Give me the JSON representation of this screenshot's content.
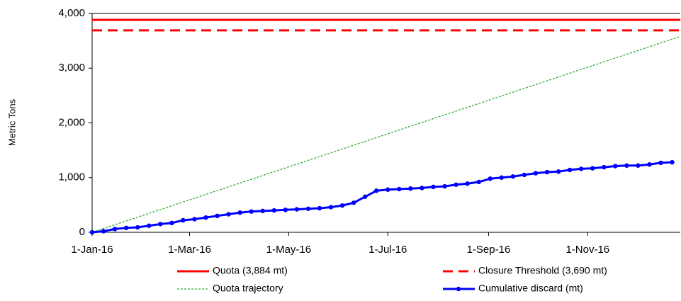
{
  "chart_data": {
    "type": "line",
    "ylabel": "Metric Tons",
    "xlim": [
      "2016-01-01",
      "2016-12-28"
    ],
    "xticks": [
      {
        "value": "2016-01-01",
        "label": "1-Jan-16"
      },
      {
        "value": "2016-03-01",
        "label": "1-Mar-16"
      },
      {
        "value": "2016-05-01",
        "label": "1-May-16"
      },
      {
        "value": "2016-07-01",
        "label": "1-Jul-16"
      },
      {
        "value": "2016-09-01",
        "label": "1-Sep-16"
      },
      {
        "value": "2016-11-01",
        "label": "1-Nov-16"
      }
    ],
    "ylim": [
      0,
      4000
    ],
    "yticks": [
      0,
      {
        "value": 1000,
        "label": "1,000"
      },
      {
        "value": 2000,
        "label": "2,000"
      },
      {
        "value": 3000,
        "label": "3,000"
      },
      {
        "value": 4000,
        "label": "4,000"
      }
    ],
    "legend": "bottom",
    "series": [
      {
        "name": "Quota (3,884 mt)",
        "color": "#ff0000",
        "style": "solid",
        "marker": false,
        "x": [
          "2016-01-01",
          "2016-12-28"
        ],
        "values": [
          3884,
          3884
        ]
      },
      {
        "name": "Closure Threshold (3,690 mt)",
        "color": "#ff0000",
        "style": "dashed",
        "marker": false,
        "x": [
          "2016-01-01",
          "2016-12-28"
        ],
        "values": [
          3690,
          3690
        ]
      },
      {
        "name": "Quota trajectory",
        "color": "#33aa33",
        "style": "dotted",
        "marker": false,
        "x": [
          "2016-01-01",
          "2016-12-28"
        ],
        "values": [
          0,
          3580
        ]
      },
      {
        "name": "Cumulative discard (mt)",
        "color": "#0000ff",
        "style": "solid",
        "marker": true,
        "x": [
          "2016-01-01",
          "2016-01-08",
          "2016-01-15",
          "2016-01-22",
          "2016-01-29",
          "2016-02-05",
          "2016-02-12",
          "2016-02-19",
          "2016-02-26",
          "2016-03-04",
          "2016-03-11",
          "2016-03-18",
          "2016-03-25",
          "2016-04-01",
          "2016-04-08",
          "2016-04-15",
          "2016-04-22",
          "2016-04-29",
          "2016-05-06",
          "2016-05-13",
          "2016-05-20",
          "2016-05-27",
          "2016-06-03",
          "2016-06-10",
          "2016-06-17",
          "2016-06-24",
          "2016-07-01",
          "2016-07-08",
          "2016-07-15",
          "2016-07-22",
          "2016-07-29",
          "2016-08-05",
          "2016-08-12",
          "2016-08-19",
          "2016-08-26",
          "2016-09-02",
          "2016-09-09",
          "2016-09-16",
          "2016-09-23",
          "2016-09-30",
          "2016-10-07",
          "2016-10-14",
          "2016-10-21",
          "2016-10-28",
          "2016-11-04",
          "2016-11-11",
          "2016-11-18",
          "2016-11-25",
          "2016-12-02",
          "2016-12-09",
          "2016-12-16",
          "2016-12-23"
        ],
        "values": [
          0,
          20,
          60,
          80,
          90,
          120,
          150,
          170,
          220,
          240,
          270,
          300,
          330,
          360,
          380,
          390,
          400,
          410,
          420,
          430,
          440,
          460,
          490,
          540,
          650,
          760,
          780,
          790,
          800,
          810,
          830,
          840,
          870,
          890,
          920,
          980,
          1000,
          1020,
          1050,
          1080,
          1100,
          1110,
          1140,
          1160,
          1170,
          1190,
          1210,
          1220,
          1220,
          1240,
          1270,
          1280
        ]
      }
    ]
  }
}
